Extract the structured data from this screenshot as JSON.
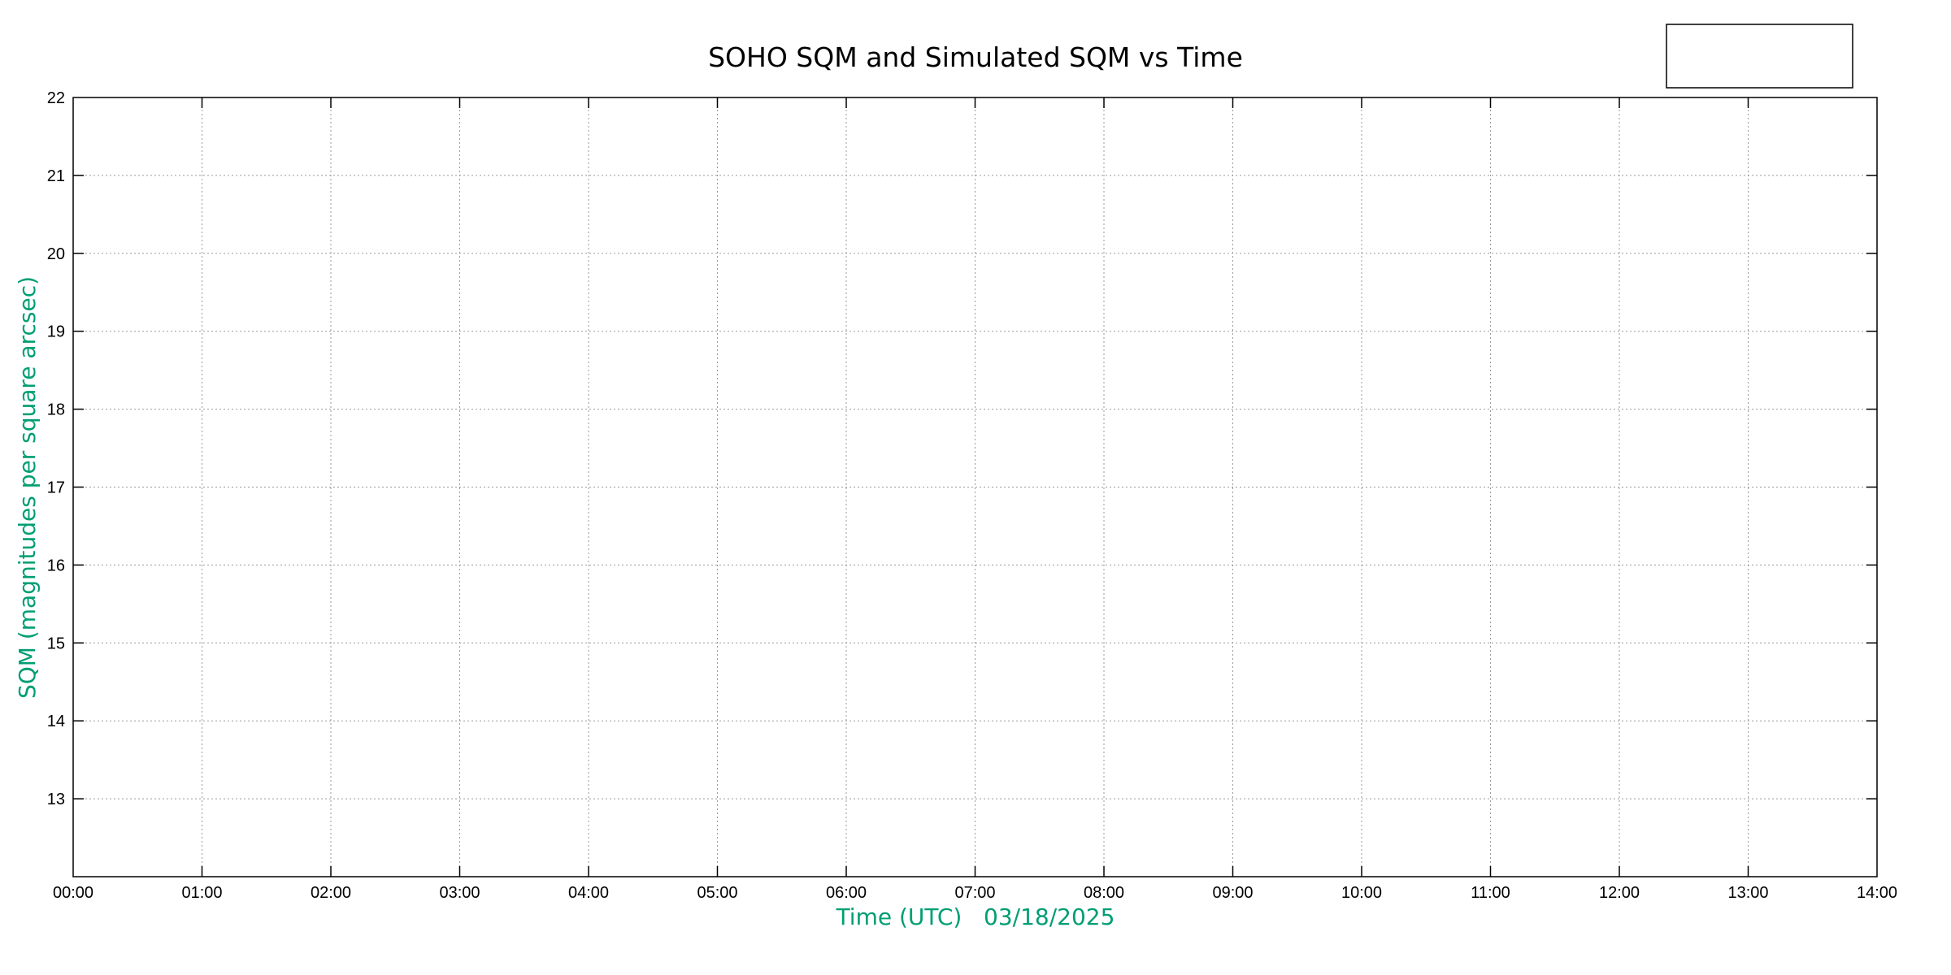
{
  "chart_data": {
    "type": "line",
    "title": "SOHO SQM and Simulated SQM vs Time",
    "xlabel": "Time (UTC)   03/18/2025",
    "ylabel": "SQM (magnitudes per square arcsec)",
    "x_ticks": [
      "00:00",
      "01:00",
      "02:00",
      "03:00",
      "04:00",
      "05:00",
      "06:00",
      "07:00",
      "08:00",
      "09:00",
      "10:00",
      "11:00",
      "12:00",
      "13:00",
      "14:00"
    ],
    "xlim": [
      "00:00",
      "14:00"
    ],
    "y_ticks": [
      13,
      14,
      15,
      16,
      17,
      18,
      19,
      20,
      21,
      22
    ],
    "ylim": [
      12,
      22
    ],
    "grid": true,
    "legend": "top-right",
    "series": [],
    "colors": {
      "axis_label": "#009e73",
      "grid": "#999999",
      "axes": "#000000"
    }
  }
}
